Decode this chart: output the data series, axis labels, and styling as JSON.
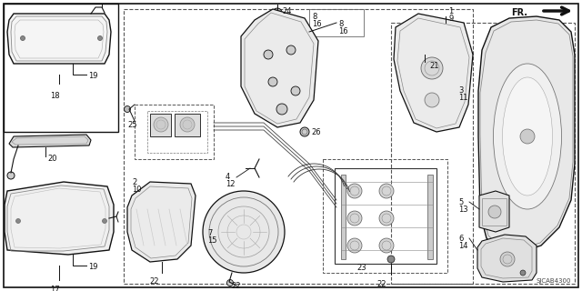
{
  "bg_color": "#ffffff",
  "lc": "#111111",
  "diagram_id": "SJCAB4300",
  "figsize": [
    6.4,
    3.2
  ],
  "dpi": 100
}
